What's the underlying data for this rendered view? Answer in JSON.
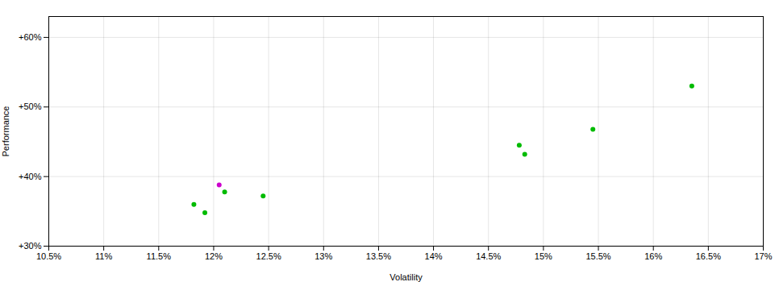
{
  "chart_data": {
    "type": "scatter",
    "x": [
      11.82,
      11.92,
      12.05,
      12.1,
      12.45,
      14.78,
      14.83,
      15.45,
      16.35
    ],
    "values": [
      36.0,
      34.8,
      38.8,
      37.8,
      37.2,
      44.5,
      43.2,
      46.8,
      53.0
    ],
    "colors": [
      "#00bb00",
      "#00bb00",
      "#cc00cc",
      "#00bb00",
      "#00bb00",
      "#00bb00",
      "#00bb00",
      "#00bb00",
      "#00bb00"
    ],
    "xlabel": "Volatility",
    "ylabel": "Performance",
    "xlim": [
      10.5,
      17.0
    ],
    "ylim": [
      30.0,
      63.0
    ],
    "xticks": [
      {
        "value": 10.5,
        "label": "10.5%"
      },
      {
        "value": 11.0,
        "label": "11%"
      },
      {
        "value": 11.5,
        "label": "11.5%"
      },
      {
        "value": 12.0,
        "label": "12%"
      },
      {
        "value": 12.5,
        "label": "12.5%"
      },
      {
        "value": 13.0,
        "label": "13%"
      },
      {
        "value": 13.5,
        "label": "13.5%"
      },
      {
        "value": 14.0,
        "label": "14%"
      },
      {
        "value": 14.5,
        "label": "14.5%"
      },
      {
        "value": 15.0,
        "label": "15%"
      },
      {
        "value": 15.5,
        "label": "15.5%"
      },
      {
        "value": 16.0,
        "label": "16%"
      },
      {
        "value": 16.5,
        "label": "16.5%"
      },
      {
        "value": 17.0,
        "label": "17%"
      }
    ],
    "yticks": [
      {
        "value": 30,
        "label": "+30%"
      },
      {
        "value": 40,
        "label": "+40%"
      },
      {
        "value": 50,
        "label": "+50%"
      },
      {
        "value": 60,
        "label": "+60%"
      }
    ],
    "grid": true
  }
}
